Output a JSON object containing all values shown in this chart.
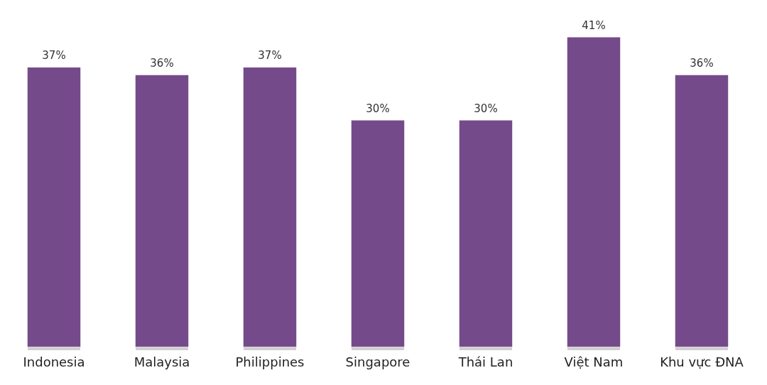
{
  "chart_data": {
    "type": "bar",
    "categories": [
      "Indonesia",
      "Malaysia",
      "Philippines",
      "Singapore",
      "Thái Lan",
      "Việt Nam",
      "Khu vực ĐNA"
    ],
    "values": [
      37,
      36,
      37,
      30,
      30,
      41,
      36
    ],
    "value_labels": [
      "37%",
      "36%",
      "37%",
      "30%",
      "30%",
      "41%",
      "36%"
    ],
    "color": "#754a8a",
    "grid": false,
    "legend": false
  }
}
